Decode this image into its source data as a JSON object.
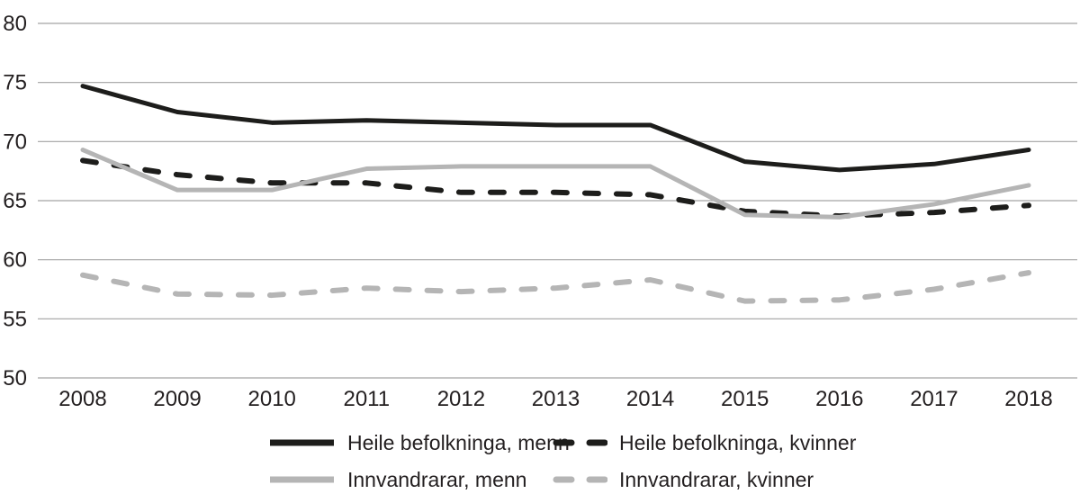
{
  "colors": {
    "background": "#ffffff",
    "gridline": "#a3a3a3",
    "text": "#231f20",
    "series_black": "#1d1d1b",
    "series_gray": "#b5b5b5"
  },
  "chart_data": {
    "type": "line",
    "title": "",
    "categories": [
      "2008",
      "2009",
      "2010",
      "2011",
      "2012",
      "2013",
      "2014",
      "2015",
      "2016",
      "2017",
      "2018"
    ],
    "series": [
      {
        "name": "Heile befolkninga, menn",
        "color": "#1d1d1b",
        "style": "solid",
        "values": [
          74.7,
          72.5,
          71.6,
          71.8,
          71.6,
          71.4,
          71.4,
          68.3,
          67.6,
          68.1,
          69.3
        ]
      },
      {
        "name": "Heile befolkninga, kvinner",
        "color": "#1d1d1b",
        "style": "dashed",
        "values": [
          68.4,
          67.2,
          66.5,
          66.5,
          65.7,
          65.7,
          65.5,
          64.1,
          63.7,
          64.0,
          64.6
        ]
      },
      {
        "name": "Innvandrarar, menn",
        "color": "#b5b5b5",
        "style": "solid",
        "values": [
          69.3,
          65.9,
          65.9,
          67.7,
          67.9,
          67.9,
          67.9,
          63.8,
          63.6,
          64.7,
          66.3
        ]
      },
      {
        "name": "Innvandrarar, kvinner",
        "color": "#b5b5b5",
        "style": "dashed",
        "values": [
          58.7,
          57.1,
          57.0,
          57.6,
          57.3,
          57.6,
          58.3,
          56.5,
          56.6,
          57.5,
          58.9
        ]
      }
    ],
    "yticks": [
      50,
      55,
      60,
      65,
      70,
      75,
      80
    ],
    "ylim": [
      50,
      80
    ],
    "grid": true,
    "legend_position": "bottom"
  }
}
